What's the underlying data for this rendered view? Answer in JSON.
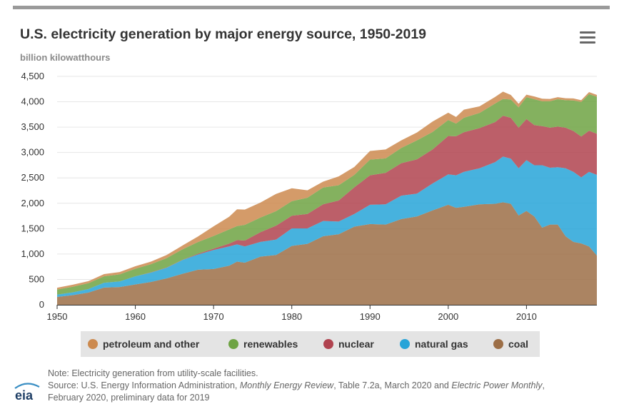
{
  "header": {
    "title": "U.S. electricity generation by major energy source, 1950-2019",
    "unit_label": "billion kilowatthours"
  },
  "menu": {
    "icon": "hamburger-menu-icon"
  },
  "colors": {
    "petroleum_and_other": "#CC8A4F",
    "renewables": "#6EA343",
    "nuclear": "#B0434F",
    "natural_gas": "#27A4D8",
    "coal": "#9C6E46",
    "grid": "#e6e6e6",
    "axis": "#333333"
  },
  "chart_data": {
    "type": "area",
    "stacked": true,
    "title": "U.S. electricity generation by major energy source, 1950-2019",
    "ylabel": "billion kilowatthours",
    "xlabel": "",
    "xlim": [
      1950,
      2019
    ],
    "ylim": [
      0,
      4500
    ],
    "x_ticks": [
      1950,
      1960,
      1970,
      1980,
      1990,
      2000,
      2010
    ],
    "y_ticks": [
      0,
      500,
      1000,
      1500,
      2000,
      2500,
      3000,
      3500,
      4000,
      4500
    ],
    "y_tick_labels": [
      "0",
      "500",
      "1,000",
      "1,500",
      "2,000",
      "2,500",
      "3,000",
      "3,500",
      "4,000",
      "4,500"
    ],
    "grid": "horizontal",
    "legend_position": "bottom",
    "x": [
      1950,
      1952,
      1954,
      1956,
      1958,
      1960,
      1962,
      1964,
      1966,
      1968,
      1970,
      1972,
      1973,
      1974,
      1976,
      1978,
      1980,
      1982,
      1984,
      1986,
      1988,
      1990,
      1992,
      1994,
      1996,
      1998,
      2000,
      2001,
      2002,
      2004,
      2006,
      2007,
      2008,
      2009,
      2010,
      2011,
      2012,
      2013,
      2014,
      2015,
      2016,
      2017,
      2018,
      2019
    ],
    "series": [
      {
        "name": "coal",
        "values": [
          155,
          190,
          240,
          340,
          350,
          400,
          450,
          520,
          610,
          690,
          705,
          770,
          850,
          830,
          950,
          980,
          1160,
          1200,
          1350,
          1390,
          1540,
          1590,
          1580,
          1690,
          1740,
          1860,
          1970,
          1910,
          1930,
          1980,
          1990,
          2020,
          1990,
          1760,
          1850,
          1740,
          1520,
          1580,
          1580,
          1350,
          1240,
          1210,
          1150,
          970
        ]
      },
      {
        "name": "natural gas",
        "values": [
          45,
          55,
          70,
          95,
          110,
          160,
          185,
          210,
          270,
          300,
          375,
          380,
          340,
          320,
          290,
          305,
          345,
          305,
          300,
          250,
          250,
          380,
          400,
          460,
          450,
          530,
          600,
          640,
          690,
          710,
          820,
          900,
          890,
          930,
          1000,
          1010,
          1230,
          1120,
          1130,
          1340,
          1380,
          1300,
          1470,
          1590
        ]
      },
      {
        "name": "nuclear",
        "values": [
          0,
          0,
          0,
          0,
          0,
          0,
          5,
          5,
          5,
          15,
          25,
          55,
          85,
          115,
          190,
          275,
          250,
          285,
          330,
          415,
          525,
          580,
          620,
          640,
          675,
          670,
          755,
          770,
          780,
          790,
          790,
          805,
          805,
          800,
          810,
          790,
          770,
          790,
          800,
          800,
          805,
          805,
          810,
          810
        ]
      },
      {
        "name": "renewables",
        "values": [
          100,
          110,
          115,
          125,
          140,
          150,
          160,
          185,
          205,
          230,
          250,
          280,
          275,
          310,
          290,
          285,
          285,
          320,
          330,
          300,
          245,
          310,
          285,
          300,
          375,
          345,
          315,
          250,
          285,
          300,
          365,
          330,
          360,
          400,
          430,
          510,
          490,
          520,
          540,
          540,
          600,
          680,
          720,
          730
        ]
      },
      {
        "name": "petroleum and other",
        "values": [
          35,
          40,
          40,
          45,
          45,
          50,
          50,
          60,
          75,
          110,
          190,
          250,
          330,
          300,
          295,
          340,
          255,
          145,
          115,
          175,
          155,
          170,
          175,
          150,
          155,
          205,
          145,
          130,
          160,
          130,
          130,
          145,
          90,
          70,
          50,
          55,
          50,
          45,
          40,
          40,
          40,
          35,
          40,
          35
        ]
      }
    ]
  },
  "legend": {
    "items": [
      {
        "label": "petroleum and other",
        "color": "#CC8A4F"
      },
      {
        "label": "renewables",
        "color": "#6EA343"
      },
      {
        "label": "nuclear",
        "color": "#B0434F"
      },
      {
        "label": "natural gas",
        "color": "#27A4D8"
      },
      {
        "label": "coal",
        "color": "#9C6E46"
      }
    ]
  },
  "notes": {
    "note": "Note: Electricity generation from utility-scale facilities.",
    "source_prefix": "Source: U.S. Energy Information Administration, ",
    "source_title1": "Monthly Energy Review",
    "source_mid": ", Table 7.2a, March 2020 and ",
    "source_title2": "Electric Power Monthly",
    "source_suffix": ",",
    "line3": "February 2020, preliminary data for 2019"
  },
  "logo": {
    "text": "eia"
  }
}
